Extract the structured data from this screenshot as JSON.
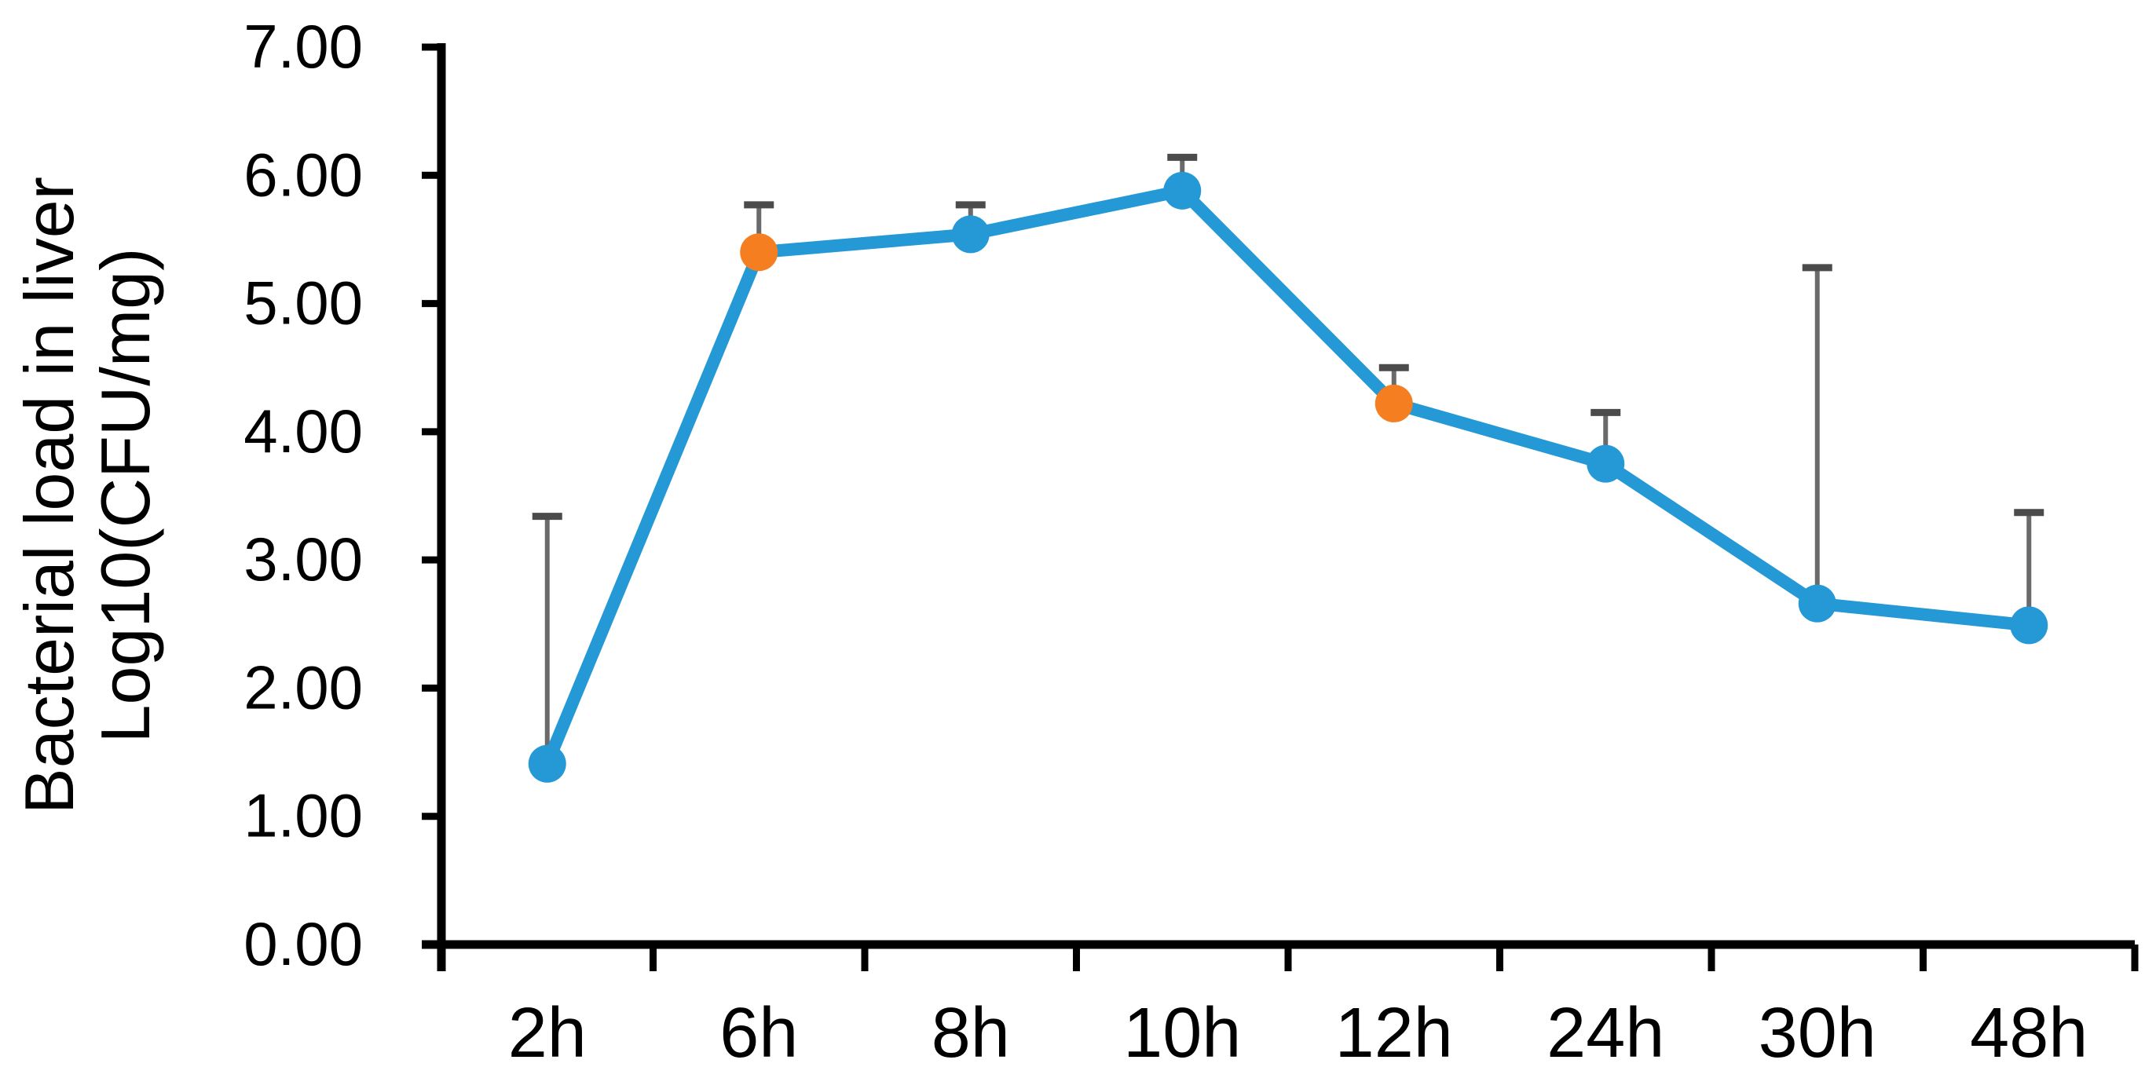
{
  "figure": {
    "background_color": "#ffffff",
    "axis_color": "#000000",
    "text_color": "#000000"
  },
  "chart_data": {
    "type": "line",
    "categories": [
      "2h",
      "6h",
      "8h",
      "10h",
      "12h",
      "24h",
      "30h",
      "48h"
    ],
    "series": [
      {
        "name": "Bacterial load in liver",
        "values": [
          1.41,
          5.4,
          5.54,
          5.88,
          4.22,
          3.75,
          2.66,
          2.49
        ],
        "error_up": [
          1.93,
          0.37,
          0.23,
          0.26,
          0.28,
          0.4,
          2.62,
          0.88
        ],
        "line_color": "#2499D6",
        "marker_colors": [
          "#2499D6",
          "#F57E20",
          "#2499D6",
          "#2499D6",
          "#F57E20",
          "#2499D6",
          "#2499D6",
          "#2499D6"
        ]
      }
    ],
    "title": "",
    "xlabel": "",
    "ylabel": "Bacterial load in liver Log10(CFU/mg)",
    "ylabel_lines": [
      "Bacterial load in liver",
      "Log10(CFU/mg)"
    ],
    "ylim": [
      0,
      7
    ],
    "ytick_step": 1,
    "ytick_decimals": 2,
    "ytick_labels": [
      "0.00",
      "1.00",
      "2.00",
      "3.00",
      "4.00",
      "5.00",
      "6.00",
      "7.00"
    ],
    "grid": false,
    "legend": "none",
    "error_bar_line_color": "#6A6A6A",
    "error_bar_cap_color": "#4B4B4B"
  }
}
